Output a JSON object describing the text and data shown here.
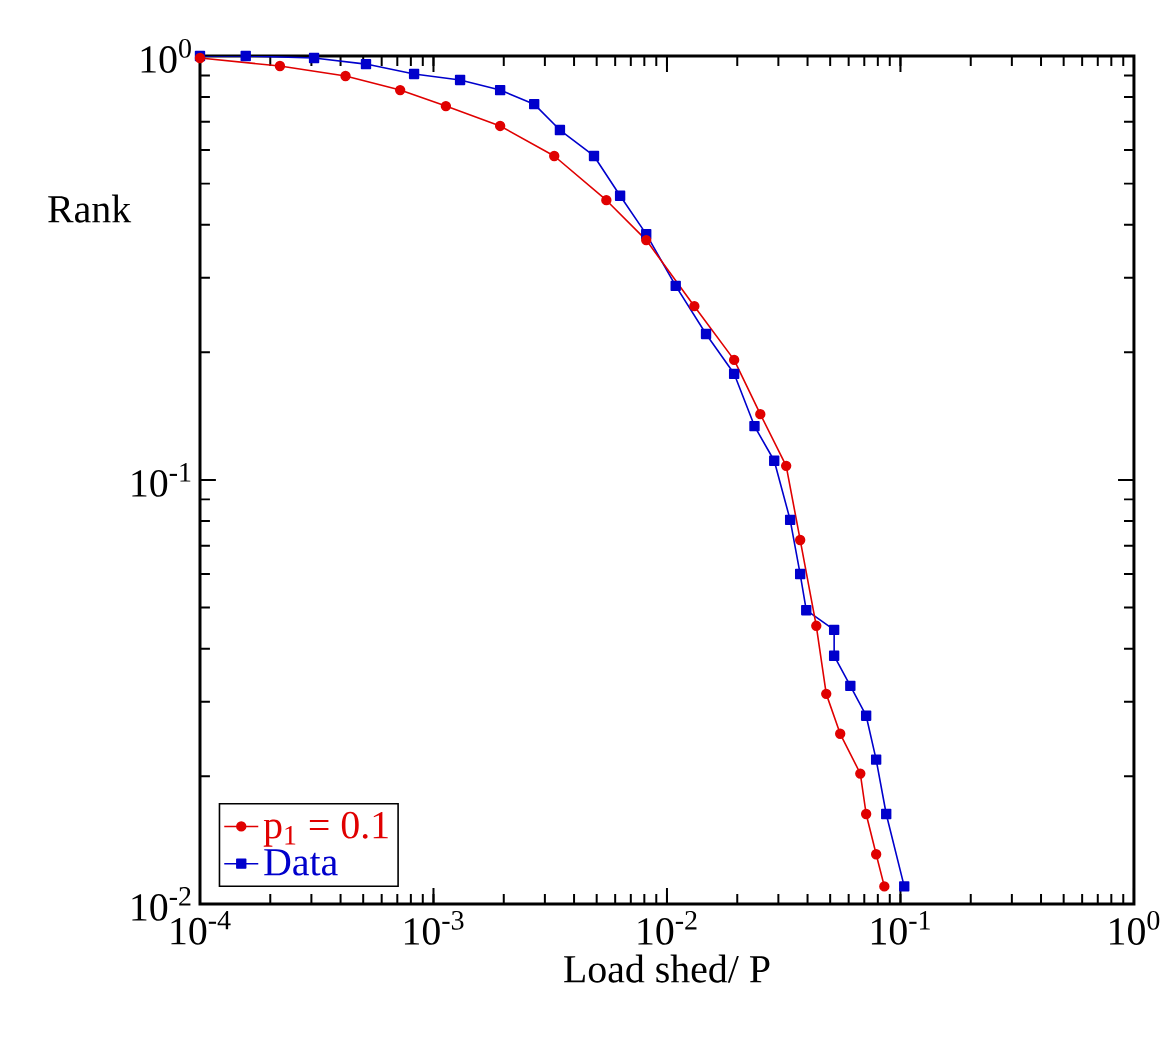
{
  "chart_data": {
    "type": "line",
    "xlabel": "Load shed/ P",
    "ylabel": "Rank",
    "log": "xy",
    "grid": false,
    "legend": "bottom left",
    "xlim": [
      0.0001,
      1
    ],
    "ylim": [
      0.01,
      1
    ],
    "xticks": [
      {
        "value": 0.0001,
        "label": "10$^{-4}$"
      },
      {
        "value": 0.001,
        "label": "10$^{-3}$"
      },
      {
        "value": 0.01,
        "label": "10$^{-2}$"
      },
      {
        "value": 0.1,
        "label": "10$^{-1}$"
      },
      {
        "value": 1,
        "label": "10$^{0}$"
      }
    ],
    "yticks": [
      {
        "value": 0.01,
        "label": "10$^{-2}$"
      },
      {
        "value": 0.1,
        "label": "10$^{-1}$"
      },
      {
        "value": 1,
        "label": "10$^{0}$"
      }
    ],
    "series": [
      {
        "name": "p$_{1}$ = 0.1",
        "color": "#e00000",
        "marker": "circle",
        "x": [
          0.0001,
          0.00022,
          0.00042,
          0.00072,
          0.00113,
          0.00193,
          0.00329,
          0.0055,
          0.00815,
          0.0131,
          0.0194,
          0.0251,
          0.0324,
          0.0372,
          0.0436,
          0.0481,
          0.0552,
          0.0673,
          0.0713,
          0.0787,
          0.0853
        ],
        "values": [
          0.989,
          0.947,
          0.897,
          0.831,
          0.762,
          0.684,
          0.581,
          0.457,
          0.368,
          0.257,
          0.192,
          0.143,
          0.108,
          0.0722,
          0.0453,
          0.0313,
          0.0252,
          0.0203,
          0.0163,
          0.0131,
          0.011
        ]
      },
      {
        "name": "Data",
        "color": "#0000cc",
        "marker": "square",
        "x": [
          0.0001,
          0.000157,
          0.000308,
          0.000514,
          0.000826,
          0.0013,
          0.00193,
          0.0027,
          0.00348,
          0.00487,
          0.0063,
          0.00815,
          0.0109,
          0.0147,
          0.0194,
          0.0237,
          0.0288,
          0.0337,
          0.0372,
          0.0395,
          0.052,
          0.052,
          0.061,
          0.0713,
          0.0787,
          0.0869,
          0.1038
        ],
        "values": [
          1.0,
          1.0,
          0.989,
          0.957,
          0.907,
          0.878,
          0.831,
          0.77,
          0.669,
          0.581,
          0.468,
          0.38,
          0.287,
          0.221,
          0.178,
          0.134,
          0.111,
          0.0805,
          0.06,
          0.0493,
          0.0443,
          0.0385,
          0.0327,
          0.0278,
          0.0219,
          0.0163,
          0.011
        ]
      }
    ]
  }
}
